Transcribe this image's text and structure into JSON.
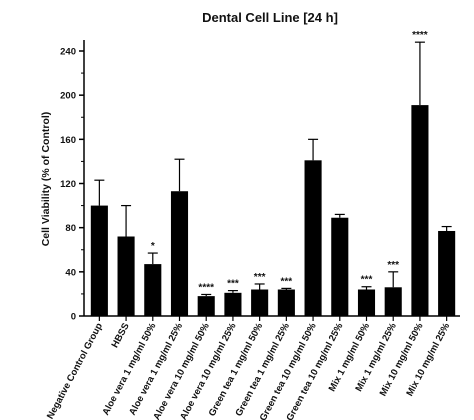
{
  "chart_data": {
    "type": "bar",
    "title": "Dental Cell Line [24 h]",
    "xlabel": "",
    "ylabel": "Cell Viability (% of Control)",
    "ylim": [
      0,
      250
    ],
    "yticks": [
      0,
      40,
      80,
      120,
      160,
      200,
      240
    ],
    "grid": false,
    "legend": "none",
    "bar_color": "#000000",
    "categories": [
      "Negative Control Group",
      "HBSS",
      "Aloe vera 1 mg/ml 50%",
      "Aloe vera 1 mg/ml 25%",
      "Aloe vera 10 mg/ml 50%",
      "Aloe vera 10 mg/ml 25%",
      "Green tea 1 mg/ml 50%",
      "Green tea 1 mg/ml 25%",
      "Green tea 10 mg/ml 50%",
      "Green tea 10 mg/ml 25%",
      "Mix 1 mg/ml 50%",
      "Mix 1 mg/ml 25%",
      "Mix 10 mg/ml 50%",
      "Mix 10 mg/ml 25%"
    ],
    "values": [
      100,
      72,
      47,
      113,
      18,
      21,
      24,
      24,
      141,
      89,
      24,
      26,
      191,
      77
    ],
    "errors": [
      23,
      28,
      10,
      29,
      1.5,
      2,
      5,
      1,
      19,
      3,
      2.5,
      14,
      57,
      4
    ],
    "significance": [
      "",
      "",
      "*",
      "",
      "****",
      "***",
      "***",
      "***",
      "",
      "",
      "***",
      "***",
      "****",
      ""
    ]
  }
}
